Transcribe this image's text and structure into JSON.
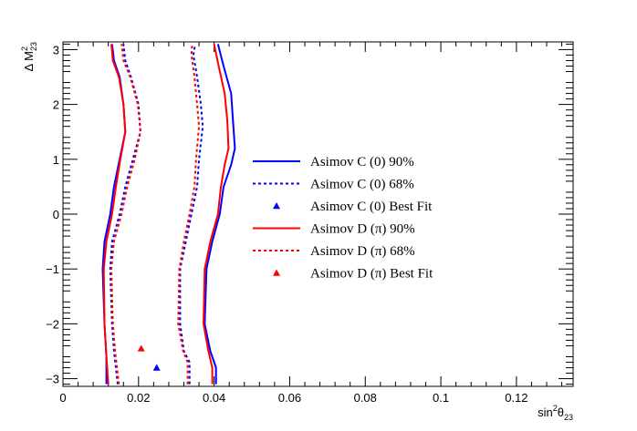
{
  "chart_data": {
    "type": "line",
    "xlabel": "sin²θ₂₃",
    "xlabel_parts": {
      "base": "sin",
      "sup": "2",
      "mid": "θ",
      "sub": "23"
    },
    "ylabel": "Δ M²₂₃",
    "ylabel_parts": {
      "base": "Δ M",
      "sup": "2",
      "sub": "23"
    },
    "xlim": [
      0,
      0.135
    ],
    "ylim": [
      -3.14,
      3.14
    ],
    "x_ticks": [
      0,
      0.02,
      0.04,
      0.06,
      0.08,
      0.1,
      0.12
    ],
    "x_tick_labels": [
      "0",
      "0.02",
      "0.04",
      "0.06",
      "0.08",
      "0.1",
      "0.12"
    ],
    "y_ticks": [
      -3,
      -2,
      -1,
      0,
      1,
      2,
      3
    ],
    "y_tick_labels": [
      "−3",
      "−2",
      "−1",
      "0",
      "1",
      "2",
      "3"
    ],
    "grid": false,
    "legend_position": "center-right",
    "series": [
      {
        "name": "Asimov C (0) 90%",
        "style": "solid",
        "color": "#0000ff",
        "kind": "contour",
        "branches": [
          [
            [
              0.0115,
              -3.1
            ],
            [
              0.0115,
              -2.6
            ],
            [
              0.011,
              -2.0
            ],
            [
              0.0105,
              -1.0
            ],
            [
              0.011,
              -0.5
            ],
            [
              0.0125,
              0
            ],
            [
              0.0135,
              0.5
            ],
            [
              0.015,
              1.0
            ],
            [
              0.0165,
              1.5
            ],
            [
              0.016,
              2.0
            ],
            [
              0.015,
              2.5
            ],
            [
              0.0135,
              2.8
            ],
            [
              0.013,
              3.1
            ]
          ],
          [
            [
              0.0405,
              -3.1
            ],
            [
              0.0405,
              -2.8
            ],
            [
              0.039,
              -2.5
            ],
            [
              0.0375,
              -2.0
            ],
            [
              0.038,
              -1.0
            ],
            [
              0.0395,
              -0.5
            ],
            [
              0.0415,
              0
            ],
            [
              0.0425,
              0.5
            ],
            [
              0.0445,
              0.9
            ],
            [
              0.0455,
              1.2
            ],
            [
              0.045,
              1.7
            ],
            [
              0.0445,
              2.2
            ],
            [
              0.0425,
              2.7
            ],
            [
              0.041,
              3.1
            ]
          ]
        ]
      },
      {
        "name": "Asimov C (0) 68%",
        "style": "dashed",
        "color": "#0000ff",
        "kind": "contour",
        "branches": [
          [
            [
              0.0145,
              -3.1
            ],
            [
              0.0135,
              -2.5
            ],
            [
              0.013,
              -2.0
            ],
            [
              0.0125,
              -1.0
            ],
            [
              0.013,
              -0.5
            ],
            [
              0.015,
              0
            ],
            [
              0.0165,
              0.5
            ],
            [
              0.0185,
              1.0
            ],
            [
              0.0205,
              1.5
            ],
            [
              0.02,
              2.0
            ],
            [
              0.018,
              2.5
            ],
            [
              0.0165,
              2.8
            ],
            [
              0.016,
              3.1
            ]
          ],
          [
            [
              0.0335,
              -3.1
            ],
            [
              0.0335,
              -2.7
            ],
            [
              0.032,
              -2.5
            ],
            [
              0.031,
              -2.0
            ],
            [
              0.031,
              -1.0
            ],
            [
              0.0325,
              -0.5
            ],
            [
              0.034,
              0
            ],
            [
              0.0355,
              0.5
            ],
            [
              0.036,
              1.0
            ],
            [
              0.037,
              1.6
            ],
            [
              0.0365,
              2.0
            ],
            [
              0.0355,
              2.5
            ],
            [
              0.0345,
              2.9
            ],
            [
              0.035,
              3.1
            ]
          ]
        ]
      },
      {
        "name": "Asimov C (0) Best Fit",
        "style": "marker",
        "color": "#0000ff",
        "kind": "point",
        "points": [
          [
            0.0248,
            -2.8
          ]
        ]
      },
      {
        "name": "Asimov D (π) 90%",
        "style": "solid",
        "color": "#ff0000",
        "kind": "contour",
        "branches": [
          [
            [
              0.012,
              -3.1
            ],
            [
              0.0115,
              -2.6
            ],
            [
              0.011,
              -2.0
            ],
            [
              0.0108,
              -1.0
            ],
            [
              0.0115,
              -0.5
            ],
            [
              0.013,
              0
            ],
            [
              0.014,
              0.5
            ],
            [
              0.0152,
              1.0
            ],
            [
              0.0165,
              1.5
            ],
            [
              0.016,
              2.0
            ],
            [
              0.0148,
              2.5
            ],
            [
              0.0132,
              2.8
            ],
            [
              0.0128,
              3.1
            ]
          ],
          [
            [
              0.0395,
              -3.1
            ],
            [
              0.0395,
              -2.8
            ],
            [
              0.0385,
              -2.5
            ],
            [
              0.0372,
              -2.0
            ],
            [
              0.0375,
              -1.0
            ],
            [
              0.039,
              -0.5
            ],
            [
              0.041,
              0
            ],
            [
              0.0418,
              0.5
            ],
            [
              0.0428,
              0.9
            ],
            [
              0.0438,
              1.2
            ],
            [
              0.0435,
              1.7
            ],
            [
              0.0428,
              2.2
            ],
            [
              0.0412,
              2.7
            ],
            [
              0.04,
              3.1
            ]
          ]
        ]
      },
      {
        "name": "Asimov D (π) 68%",
        "style": "dashed",
        "color": "#ff0000",
        "kind": "contour",
        "branches": [
          [
            [
              0.0148,
              -3.1
            ],
            [
              0.0138,
              -2.5
            ],
            [
              0.0132,
              -2.0
            ],
            [
              0.0128,
              -1.0
            ],
            [
              0.0135,
              -0.5
            ],
            [
              0.0155,
              0
            ],
            [
              0.017,
              0.5
            ],
            [
              0.019,
              1.0
            ],
            [
              0.0205,
              1.5
            ],
            [
              0.0198,
              2.0
            ],
            [
              0.0178,
              2.5
            ],
            [
              0.016,
              2.8
            ],
            [
              0.0155,
              3.1
            ]
          ],
          [
            [
              0.033,
              -3.1
            ],
            [
              0.033,
              -2.7
            ],
            [
              0.0318,
              -2.5
            ],
            [
              0.0305,
              -2.0
            ],
            [
              0.0308,
              -1.0
            ],
            [
              0.032,
              -0.5
            ],
            [
              0.0335,
              0
            ],
            [
              0.0348,
              0.5
            ],
            [
              0.0352,
              1.0
            ],
            [
              0.036,
              1.6
            ],
            [
              0.0355,
              2.0
            ],
            [
              0.0348,
              2.5
            ],
            [
              0.034,
              2.9
            ],
            [
              0.0342,
              3.1
            ]
          ]
        ]
      },
      {
        "name": "Asimov D (π) Best Fit",
        "style": "marker",
        "color": "#ff0000",
        "kind": "point",
        "points": [
          [
            0.0207,
            -2.45
          ]
        ]
      }
    ],
    "legend": [
      {
        "label": "Asimov C (0) 90%",
        "style": "solid",
        "color": "#0000ff"
      },
      {
        "label": "Asimov C (0) 68%",
        "style": "dashed",
        "color": "#0000ff"
      },
      {
        "label": "Asimov C (0) Best Fit",
        "style": "marker",
        "color": "#0000ff"
      },
      {
        "label": "Asimov D (π) 90%",
        "style": "solid",
        "color": "#ff0000"
      },
      {
        "label": "Asimov D (π) 68%",
        "style": "dashed",
        "color": "#ff0000"
      },
      {
        "label": "Asimov D (π) Best Fit",
        "style": "marker",
        "color": "#ff0000"
      }
    ]
  }
}
